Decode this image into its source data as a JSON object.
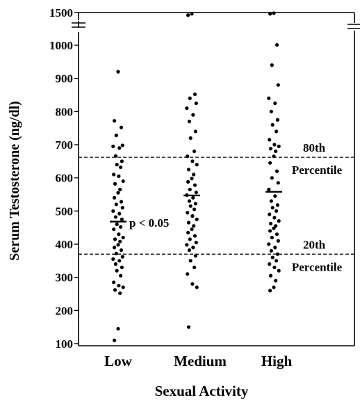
{
  "chart_data": {
    "type": "scatter",
    "title": "",
    "xlabel": "Sexual Activity",
    "ylabel": "Serum Testosterone (ng/dl)",
    "categories": [
      "Low",
      "Medium",
      "High"
    ],
    "y_ticks": [
      "100",
      "200",
      "300",
      "400",
      "500",
      "600",
      "700",
      "800",
      "900",
      "1000",
      "1500"
    ],
    "ylim": [
      100,
      1500
    ],
    "axis_break": "between 1000 and 1500",
    "grid": false,
    "colors": {
      "points": "#000000",
      "lines": "#000000"
    },
    "reference_lines": [
      {
        "value": 662,
        "label_line1": "80th",
        "label_line2": "Percentile",
        "style": "dashed"
      },
      {
        "value": 370,
        "label_line1": "20th",
        "label_line2": "Percentile",
        "style": "dashed"
      }
    ],
    "annotation": {
      "text": "p < 0.05",
      "category": "Low",
      "y": 465
    },
    "means": {
      "Low": 468,
      "Medium": 547,
      "High": 558
    },
    "series": [
      {
        "category": "Low",
        "values": [
          920,
          772,
          752,
          728,
          698,
          695,
          690,
          666,
          650,
          640,
          632,
          610,
          605,
          590,
          582,
          565,
          555,
          540,
          528,
          520,
          510,
          500,
          492,
          482,
          475,
          460,
          452,
          445,
          430,
          420,
          415,
          408,
          398,
          390,
          382,
          372,
          362,
          355,
          350,
          340,
          330,
          320,
          305,
          285,
          275,
          270,
          262,
          252,
          145,
          110
        ]
      },
      {
        "category": "Medium",
        "values": [
          1480,
          1460,
          852,
          840,
          825,
          810,
          790,
          770,
          740,
          720,
          680,
          665,
          650,
          640,
          625,
          610,
          598,
          588,
          578,
          565,
          556,
          548,
          540,
          530,
          522,
          515,
          505,
          495,
          485,
          475,
          465,
          455,
          445,
          435,
          425,
          415,
          405,
          398,
          390,
          382,
          365,
          350,
          330,
          310,
          280,
          270,
          150
        ]
      },
      {
        "category": "High",
        "values": [
          1490,
          1480,
          1005,
          940,
          880,
          840,
          825,
          800,
          775,
          760,
          740,
          715,
          700,
          695,
          688,
          680,
          665,
          645,
          620,
          600,
          585,
          565,
          545,
          530,
          518,
          510,
          500,
          490,
          480,
          470,
          462,
          455,
          448,
          440,
          430,
          420,
          410,
          400,
          390,
          380,
          370,
          360,
          350,
          340,
          330,
          320,
          305,
          290,
          270,
          260
        ]
      }
    ]
  }
}
